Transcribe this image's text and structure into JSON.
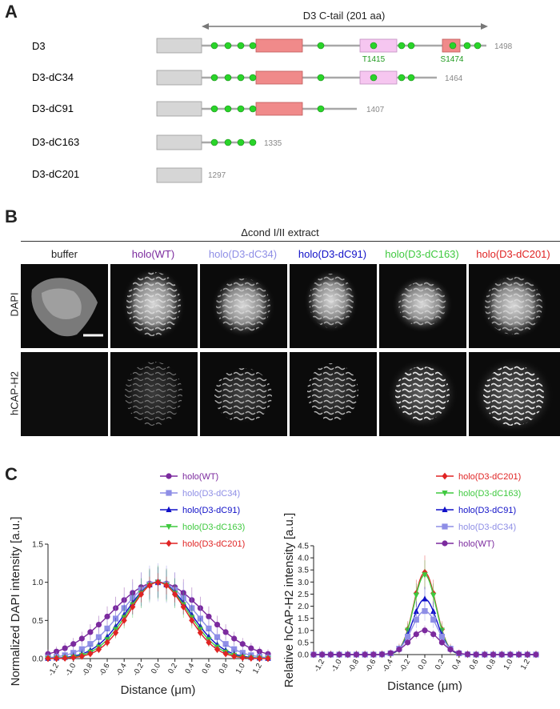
{
  "panelA": {
    "letter": "A",
    "ctail_label": "D3 C-tail (201 aa)",
    "constructs": [
      {
        "name": "D3",
        "length": "1498"
      },
      {
        "name": "D3-dC34",
        "length": "1464"
      },
      {
        "name": "D3-dC91",
        "length": "1407"
      },
      {
        "name": "D3-dC163",
        "length": "1335"
      },
      {
        "name": "D3-dC201",
        "length": "1297"
      }
    ],
    "sites": [
      "T1415",
      "S1474"
    ],
    "colors": {
      "core": "#d6d6d6",
      "red_box": "#f08a8a",
      "pink_box": "#f6c6f0",
      "dot": "#29d429",
      "site_text": "#1f9a1f"
    }
  },
  "panelB": {
    "letter": "B",
    "extract_label": "Δcond I/II extract",
    "columns": [
      {
        "label": "buffer",
        "color": "#222222"
      },
      {
        "label": "holo(WT)",
        "color": "#7b2a9e"
      },
      {
        "label": "holo(D3-dC34)",
        "color": "#8e8ee6"
      },
      {
        "label": "holo(D3-dC91)",
        "color": "#1010c8"
      },
      {
        "label": "holo(D3-dC163)",
        "color": "#3fc93f"
      },
      {
        "label": "holo(D3-dC201)",
        "color": "#e02424"
      }
    ],
    "rows": [
      "DAPI",
      "hCAP-H2"
    ]
  },
  "panelC": {
    "letter": "C"
  },
  "chart_data": [
    {
      "type": "line",
      "title": "",
      "xlabel": "Distance (μm)",
      "ylabel": "Normalized DAPI intensity [a.u.]",
      "ylim": [
        0,
        1.5
      ],
      "xlim": [
        -1.3,
        1.3
      ],
      "yticks": [
        "0.0",
        "0.5",
        "1.0",
        "1.5"
      ],
      "xticks": [
        "-1.2",
        "-1.0",
        "-0.8",
        "-0.6",
        "-0.4",
        "-0.2",
        "0.0",
        "0.2",
        "0.4",
        "0.6",
        "0.8",
        "1.0",
        "1.2"
      ],
      "legend": "top-right",
      "series": [
        {
          "name": "holo(WT)",
          "color": "#7b2a9e",
          "marker": "circle",
          "sigma": 0.55,
          "peak": 1.0,
          "err": 0.2
        },
        {
          "name": "holo(D3-dC34)",
          "color": "#8e8ee6",
          "marker": "square",
          "sigma": 0.44,
          "peak": 1.0,
          "err": 0.25
        },
        {
          "name": "holo(D3-dC91)",
          "color": "#1010c8",
          "marker": "triangle",
          "sigma": 0.38,
          "peak": 1.0,
          "err": 0.2
        },
        {
          "name": "holo(D3-dC163)",
          "color": "#3fc93f",
          "marker": "triangle-down",
          "sigma": 0.36,
          "peak": 1.0,
          "err": 0.22
        },
        {
          "name": "holo(D3-dC201)",
          "color": "#e02424",
          "marker": "diamond",
          "sigma": 0.34,
          "peak": 1.0,
          "err": 0.12
        }
      ]
    },
    {
      "type": "line",
      "title": "",
      "xlabel": "Distance (μm)",
      "ylabel": "Relative hCAP-H2 intensity [a.u.]",
      "ylim": [
        0,
        4.5
      ],
      "xlim": [
        -1.3,
        1.3
      ],
      "yticks": [
        "0.0",
        "0.5",
        "1.0",
        "1.5",
        "2.0",
        "2.5",
        "3.0",
        "3.5",
        "4.0",
        "4.5"
      ],
      "xticks": [
        "-1.2",
        "-1.0",
        "-0.8",
        "-0.6",
        "-0.4",
        "-0.2",
        "0.0",
        "0.2",
        "0.4",
        "0.6",
        "0.8",
        "1.0",
        "1.2"
      ],
      "legend": "top-right",
      "series": [
        {
          "name": "holo(D3-dC201)",
          "color": "#e02424",
          "marker": "diamond",
          "sigma": 0.13,
          "peak": 3.4,
          "err": 0.7
        },
        {
          "name": "holo(D3-dC163)",
          "color": "#3fc93f",
          "marker": "triangle-down",
          "sigma": 0.13,
          "peak": 3.3,
          "err": 0.6
        },
        {
          "name": "holo(D3-dC91)",
          "color": "#1010c8",
          "marker": "triangle",
          "sigma": 0.14,
          "peak": 2.3,
          "err": 0.5
        },
        {
          "name": "holo(D3-dC34)",
          "color": "#8e8ee6",
          "marker": "square",
          "sigma": 0.15,
          "peak": 1.8,
          "err": 0.4
        },
        {
          "name": "holo(WT)",
          "color": "#7b2a9e",
          "marker": "circle",
          "sigma": 0.17,
          "peak": 1.0,
          "err": 0.2
        }
      ]
    }
  ]
}
